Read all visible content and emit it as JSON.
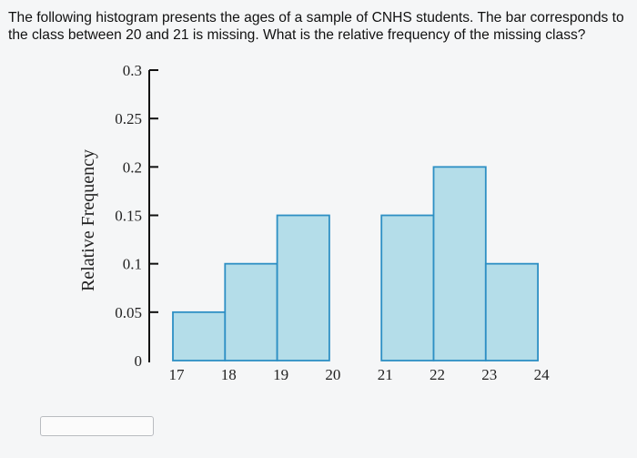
{
  "question": {
    "text": "The following histogram presents the ages of a sample of CNHS students. The bar corresponds to the class between 20 and 21 is missing. What is the relative frequency of the missing class?"
  },
  "answer": {
    "value": ""
  },
  "colors": {
    "bar_fill": "#b4dde9",
    "bar_stroke": "#2d8fc4",
    "axis": "#111111"
  },
  "chart_data": {
    "type": "bar",
    "ylabel": "Relative Frequency",
    "xlabel": "",
    "ylim": [
      0,
      0.3
    ],
    "y_ticks": [
      "0",
      "0.05",
      "0.1",
      "0.15",
      "0.2",
      "0.25",
      "0.3"
    ],
    "x_ticks": [
      "17",
      "18",
      "19",
      "20",
      "21",
      "22",
      "23",
      "24"
    ],
    "bins": [
      {
        "from": 17,
        "to": 18,
        "value": 0.05
      },
      {
        "from": 18,
        "to": 19,
        "value": 0.1
      },
      {
        "from": 19,
        "to": 20,
        "value": 0.15
      },
      {
        "from": 20,
        "to": 21,
        "value": null
      },
      {
        "from": 21,
        "to": 22,
        "value": 0.15
      },
      {
        "from": 22,
        "to": 23,
        "value": 0.2
      },
      {
        "from": 23,
        "to": 24,
        "value": 0.1
      }
    ],
    "grid": false
  }
}
